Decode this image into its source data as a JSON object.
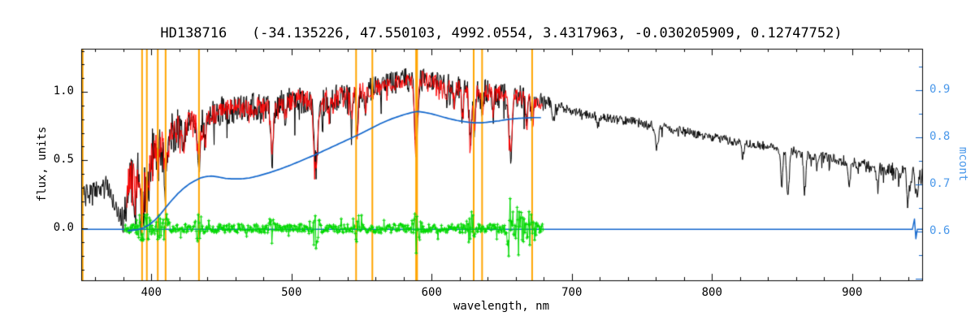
{
  "chart_data": {
    "type": "line",
    "title": "HD138716   (-34.135226, 47.550103, 4992.0554, 3.4317963, -0.030205909, 0.12747752)",
    "xlabel": "wavelength, nm",
    "ylabel_left": "flux, units",
    "ylabel_right": "mcont",
    "x_axis": {
      "range": [
        350,
        950
      ],
      "major_ticks": [
        400,
        500,
        600,
        700,
        800,
        900
      ],
      "minor_step": 20
    },
    "y_axis_left": {
      "range": [
        -0.38,
        1.316
      ],
      "major_ticks": [
        0.0,
        0.5,
        1.0
      ],
      "tick_labels": [
        "0.0",
        "0.5",
        "1.0"
      ],
      "minor_step": 0.1
    },
    "y_axis_right": {
      "range": [
        0.497,
        0.988
      ],
      "major_ticks": [
        0.6,
        0.7,
        0.8,
        0.9
      ],
      "tick_labels": [
        "0.6",
        "0.7",
        "0.8",
        "0.9"
      ],
      "minor_step": 0.05,
      "label_color": "#4a98ea"
    },
    "colors": {
      "observed": "#000000",
      "fit": "#ff0000",
      "residual": "#00d800",
      "mcont": "#1166cc",
      "marker_lines": "#ffa500",
      "frame": "#000000"
    },
    "grid": false,
    "legend": "none",
    "marker_lines_nm": [
      351.0,
      393.4,
      396.8,
      404.6,
      410.2,
      434.0,
      546.1,
      557.7,
      588.9,
      589.6,
      630.0,
      636.0,
      671.7
    ],
    "noise_seed": 20240917,
    "series": [
      {
        "name": "observed spectrum",
        "color_key": "observed",
        "x_range": [
          350,
          950
        ],
        "envelope": [
          [
            350,
            0.24
          ],
          [
            356,
            0.27
          ],
          [
            362,
            0.3
          ],
          [
            368,
            0.32
          ],
          [
            372,
            0.22
          ],
          [
            376,
            0.12
          ],
          [
            379,
            0.07
          ],
          [
            381,
            0.1
          ],
          [
            383,
            0.32
          ],
          [
            386,
            0.38
          ],
          [
            390,
            0.42
          ],
          [
            394,
            0.38
          ],
          [
            398,
            0.5
          ],
          [
            402,
            0.58
          ],
          [
            406,
            0.6
          ],
          [
            410,
            0.58
          ],
          [
            414,
            0.68
          ],
          [
            420,
            0.74
          ],
          [
            426,
            0.77
          ],
          [
            432,
            0.78
          ],
          [
            436,
            0.76
          ],
          [
            440,
            0.8
          ],
          [
            446,
            0.84
          ],
          [
            452,
            0.87
          ],
          [
            460,
            0.88
          ],
          [
            470,
            0.89
          ],
          [
            480,
            0.9
          ],
          [
            488,
            0.9
          ],
          [
            496,
            0.93
          ],
          [
            504,
            0.95
          ],
          [
            512,
            0.93
          ],
          [
            520,
            0.92
          ],
          [
            528,
            0.95
          ],
          [
            536,
            0.97
          ],
          [
            544,
            0.99
          ],
          [
            552,
            1.01
          ],
          [
            560,
            1.03
          ],
          [
            568,
            1.05
          ],
          [
            576,
            1.08
          ],
          [
            585,
            1.1
          ],
          [
            592,
            1.1
          ],
          [
            600,
            1.08
          ],
          [
            608,
            1.06
          ],
          [
            616,
            1.04
          ],
          [
            624,
            1.02
          ],
          [
            632,
            1.01
          ],
          [
            640,
            1.0
          ],
          [
            648,
            0.99
          ],
          [
            656,
            0.96
          ],
          [
            664,
            0.96
          ],
          [
            672,
            0.94
          ],
          [
            680,
            0.93
          ],
          [
            690,
            0.9
          ],
          [
            700,
            0.86
          ],
          [
            715,
            0.83
          ],
          [
            730,
            0.8
          ],
          [
            745,
            0.78
          ],
          [
            760,
            0.75
          ],
          [
            775,
            0.72
          ],
          [
            790,
            0.69
          ],
          [
            805,
            0.66
          ],
          [
            820,
            0.63
          ],
          [
            835,
            0.61
          ],
          [
            850,
            0.58
          ],
          [
            865,
            0.55
          ],
          [
            880,
            0.52
          ],
          [
            895,
            0.49
          ],
          [
            910,
            0.46
          ],
          [
            925,
            0.43
          ],
          [
            940,
            0.4
          ],
          [
            950,
            0.38
          ]
        ],
        "noise_amp": [
          [
            350,
            0.055
          ],
          [
            365,
            0.06
          ],
          [
            375,
            0.05
          ],
          [
            383,
            0.16
          ],
          [
            390,
            0.2
          ],
          [
            398,
            0.2
          ],
          [
            406,
            0.17
          ],
          [
            414,
            0.14
          ],
          [
            425,
            0.11
          ],
          [
            440,
            0.1
          ],
          [
            460,
            0.095
          ],
          [
            480,
            0.09
          ],
          [
            500,
            0.09
          ],
          [
            520,
            0.1
          ],
          [
            540,
            0.085
          ],
          [
            560,
            0.08
          ],
          [
            580,
            0.075
          ],
          [
            600,
            0.07
          ],
          [
            620,
            0.075
          ],
          [
            640,
            0.08
          ],
          [
            660,
            0.08
          ],
          [
            675,
            0.06
          ],
          [
            685,
            0.035
          ],
          [
            700,
            0.03
          ],
          [
            730,
            0.028
          ],
          [
            760,
            0.03
          ],
          [
            800,
            0.028
          ],
          [
            840,
            0.03
          ],
          [
            880,
            0.035
          ],
          [
            910,
            0.04
          ],
          [
            935,
            0.055
          ],
          [
            950,
            0.07
          ]
        ]
      },
      {
        "name": "fitted spectrum",
        "color_key": "fit",
        "x_range": [
          382.5,
          679
        ],
        "amp_scale": 0.8
      },
      {
        "name": "residual (obs - fit)",
        "color_key": "residual",
        "x_range": [
          381,
          679.5
        ],
        "base_amplitude": 0.032,
        "boosts": [
          [
            393,
            0.1,
            2.5
          ],
          [
            397,
            0.09,
            2.5
          ],
          [
            405,
            0.06,
            2.0
          ],
          [
            410,
            0.07,
            2.5
          ],
          [
            434,
            0.09,
            2.5
          ],
          [
            486,
            0.08,
            2.5
          ],
          [
            517,
            0.14,
            3.0
          ],
          [
            547,
            0.08,
            2.0
          ],
          [
            589,
            0.16,
            2.5
          ],
          [
            628,
            0.1,
            2.5
          ],
          [
            656,
            0.2,
            2.5
          ],
          [
            662,
            0.16,
            4.0
          ],
          [
            671,
            0.12,
            3.0
          ]
        ]
      },
      {
        "name": "mcont continuum",
        "color_key": "mcont",
        "baseline": 0.605,
        "baseline_range": [
          350,
          950
        ],
        "baseline_glitch": [
          [
            943,
            0.605
          ],
          [
            944.5,
            0.627
          ],
          [
            945.5,
            0.585
          ],
          [
            946.5,
            0.605
          ]
        ],
        "points": [
          [
            383,
            0.602
          ],
          [
            387,
            0.603
          ],
          [
            391,
            0.605
          ],
          [
            395,
            0.609
          ],
          [
            399,
            0.616
          ],
          [
            403,
            0.626
          ],
          [
            407,
            0.639
          ],
          [
            411,
            0.654
          ],
          [
            415,
            0.668
          ],
          [
            419,
            0.681
          ],
          [
            423,
            0.692
          ],
          [
            427,
            0.701
          ],
          [
            431,
            0.708
          ],
          [
            435,
            0.714
          ],
          [
            439,
            0.717
          ],
          [
            443,
            0.718
          ],
          [
            448,
            0.716
          ],
          [
            453,
            0.713
          ],
          [
            458,
            0.712
          ],
          [
            464,
            0.712
          ],
          [
            470,
            0.714
          ],
          [
            477,
            0.719
          ],
          [
            484,
            0.725
          ],
          [
            492,
            0.733
          ],
          [
            500,
            0.742
          ],
          [
            508,
            0.752
          ],
          [
            516,
            0.762
          ],
          [
            524,
            0.773
          ],
          [
            532,
            0.784
          ],
          [
            540,
            0.795
          ],
          [
            548,
            0.806
          ],
          [
            556,
            0.818
          ],
          [
            564,
            0.83
          ],
          [
            572,
            0.84
          ],
          [
            580,
            0.848
          ],
          [
            586,
            0.853
          ],
          [
            590,
            0.855
          ],
          [
            595,
            0.853
          ],
          [
            600,
            0.85
          ],
          [
            606,
            0.845
          ],
          [
            612,
            0.84
          ],
          [
            618,
            0.836
          ],
          [
            624,
            0.833
          ],
          [
            630,
            0.831
          ],
          [
            636,
            0.831
          ],
          [
            642,
            0.833
          ],
          [
            648,
            0.835
          ],
          [
            654,
            0.838
          ],
          [
            660,
            0.84
          ],
          [
            666,
            0.841
          ],
          [
            672,
            0.842
          ],
          [
            678,
            0.842
          ]
        ]
      }
    ],
    "absorption_lines": [
      [
        388.9,
        0.18,
        1.2
      ],
      [
        393.4,
        0.3,
        1.5
      ],
      [
        396.8,
        0.28,
        1.5
      ],
      [
        404.6,
        0.15,
        1.0
      ],
      [
        410.2,
        0.25,
        1.2
      ],
      [
        422.7,
        0.2,
        1.0
      ],
      [
        434.0,
        0.28,
        1.3
      ],
      [
        438.4,
        0.15,
        1.0
      ],
      [
        486.1,
        0.38,
        1.3
      ],
      [
        495.8,
        0.12,
        0.9
      ],
      [
        516.7,
        0.42,
        1.4
      ],
      [
        518.4,
        0.3,
        1.1
      ],
      [
        526.9,
        0.16,
        0.9
      ],
      [
        543.0,
        0.18,
        1.0
      ],
      [
        546.9,
        0.3,
        1.0
      ],
      [
        552.8,
        0.12,
        0.9
      ],
      [
        588.9,
        0.55,
        1.5
      ],
      [
        610.3,
        0.12,
        0.9
      ],
      [
        616.2,
        0.14,
        0.9
      ],
      [
        622.0,
        0.22,
        1.0
      ],
      [
        627.7,
        0.4,
        1.2
      ],
      [
        630.5,
        0.28,
        1.0
      ],
      [
        636.0,
        0.18,
        1.0
      ],
      [
        644.0,
        0.14,
        0.9
      ],
      [
        656.3,
        0.42,
        1.5
      ],
      [
        667.8,
        0.22,
        1.0
      ],
      [
        672.0,
        0.18,
        1.0
      ],
      [
        686.7,
        0.14,
        1.3
      ],
      [
        718.5,
        0.08,
        1.0
      ],
      [
        760.8,
        0.16,
        1.6
      ],
      [
        822.0,
        0.1,
        1.3
      ],
      [
        849.8,
        0.26,
        1.1
      ],
      [
        854.2,
        0.36,
        1.2
      ],
      [
        866.2,
        0.28,
        1.1
      ],
      [
        875.0,
        0.1,
        1.0
      ],
      [
        898.0,
        0.14,
        1.2
      ],
      [
        918.0,
        0.1,
        1.2
      ],
      [
        940.0,
        0.14,
        1.5
      ],
      [
        946.0,
        0.16,
        1.2
      ]
    ]
  }
}
